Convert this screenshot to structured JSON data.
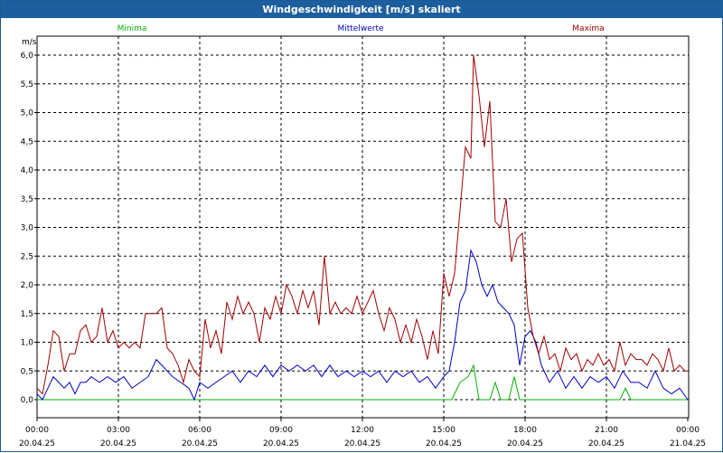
{
  "window": {
    "title": "Windgeschwindigkeit [m/s] skaliert"
  },
  "chart_data": {
    "type": "line",
    "title": "Windgeschwindigkeit [m/s] skaliert",
    "ylabel": "m/s",
    "ylim": [
      0,
      6.0
    ],
    "yticks": [
      "0,0",
      "0,5",
      "1,0",
      "1,5",
      "2,0",
      "2,5",
      "3,0",
      "3,5",
      "4,0",
      "4,5",
      "5,0",
      "5,5",
      "6,0"
    ],
    "xlim_hours": [
      0,
      24
    ],
    "xticks": [
      {
        "time": "00:00",
        "date": "20.04.25"
      },
      {
        "time": "03:00",
        "date": "20.04.25"
      },
      {
        "time": "06:00",
        "date": "20.04.25"
      },
      {
        "time": "09:00",
        "date": "20.04.25"
      },
      {
        "time": "12:00",
        "date": "20.04.25"
      },
      {
        "time": "15:00",
        "date": "20.04.25"
      },
      {
        "time": "18:00",
        "date": "20.04.25"
      },
      {
        "time": "21:00",
        "date": "20.04.25"
      },
      {
        "time": "00:00",
        "date": "21.04.25"
      }
    ],
    "grid": true,
    "legend_position": "top",
    "series": [
      {
        "name": "Minima",
        "color": "#00b000",
        "points": [
          [
            0,
            0
          ],
          [
            15.3,
            0
          ],
          [
            15.6,
            0.3
          ],
          [
            15.9,
            0.4
          ],
          [
            16.1,
            0.6
          ],
          [
            16.3,
            0
          ],
          [
            16.7,
            0
          ],
          [
            16.9,
            0.3
          ],
          [
            17.1,
            0
          ],
          [
            17.4,
            0
          ],
          [
            17.6,
            0.4
          ],
          [
            17.8,
            0
          ],
          [
            21.5,
            0
          ],
          [
            21.7,
            0.2
          ],
          [
            21.9,
            0
          ],
          [
            24,
            0
          ]
        ]
      },
      {
        "name": "Mittelwerte",
        "color": "#0000c0",
        "points": [
          [
            0,
            0.1
          ],
          [
            0.2,
            0.0
          ],
          [
            0.4,
            0.2
          ],
          [
            0.6,
            0.4
          ],
          [
            0.8,
            0.3
          ],
          [
            1.0,
            0.2
          ],
          [
            1.2,
            0.3
          ],
          [
            1.4,
            0.1
          ],
          [
            1.6,
            0.3
          ],
          [
            1.8,
            0.3
          ],
          [
            2.0,
            0.4
          ],
          [
            2.3,
            0.3
          ],
          [
            2.6,
            0.4
          ],
          [
            2.9,
            0.3
          ],
          [
            3.2,
            0.4
          ],
          [
            3.5,
            0.2
          ],
          [
            3.8,
            0.3
          ],
          [
            4.1,
            0.4
          ],
          [
            4.4,
            0.7
          ],
          [
            4.6,
            0.6
          ],
          [
            4.8,
            0.5
          ],
          [
            5.0,
            0.4
          ],
          [
            5.3,
            0.3
          ],
          [
            5.6,
            0.2
          ],
          [
            5.8,
            0.0
          ],
          [
            6.0,
            0.3
          ],
          [
            6.3,
            0.2
          ],
          [
            6.6,
            0.3
          ],
          [
            6.9,
            0.4
          ],
          [
            7.2,
            0.5
          ],
          [
            7.5,
            0.3
          ],
          [
            7.8,
            0.5
          ],
          [
            8.1,
            0.4
          ],
          [
            8.4,
            0.6
          ],
          [
            8.7,
            0.4
          ],
          [
            9.0,
            0.6
          ],
          [
            9.3,
            0.5
          ],
          [
            9.6,
            0.6
          ],
          [
            9.9,
            0.5
          ],
          [
            10.2,
            0.6
          ],
          [
            10.5,
            0.4
          ],
          [
            10.8,
            0.6
          ],
          [
            11.1,
            0.4
          ],
          [
            11.4,
            0.5
          ],
          [
            11.7,
            0.4
          ],
          [
            12.0,
            0.5
          ],
          [
            12.3,
            0.4
          ],
          [
            12.6,
            0.5
          ],
          [
            12.9,
            0.3
          ],
          [
            13.2,
            0.5
          ],
          [
            13.5,
            0.4
          ],
          [
            13.8,
            0.5
          ],
          [
            14.1,
            0.3
          ],
          [
            14.4,
            0.4
          ],
          [
            14.7,
            0.2
          ],
          [
            15.0,
            0.4
          ],
          [
            15.2,
            0.5
          ],
          [
            15.4,
            1.0
          ],
          [
            15.6,
            1.7
          ],
          [
            15.8,
            1.9
          ],
          [
            16.0,
            2.6
          ],
          [
            16.2,
            2.4
          ],
          [
            16.4,
            2.0
          ],
          [
            16.6,
            1.8
          ],
          [
            16.8,
            2.0
          ],
          [
            17.0,
            1.7
          ],
          [
            17.2,
            1.6
          ],
          [
            17.4,
            1.5
          ],
          [
            17.6,
            1.3
          ],
          [
            17.8,
            0.6
          ],
          [
            18.0,
            1.1
          ],
          [
            18.2,
            1.2
          ],
          [
            18.4,
            1.0
          ],
          [
            18.6,
            0.6
          ],
          [
            18.9,
            0.3
          ],
          [
            19.2,
            0.5
          ],
          [
            19.5,
            0.2
          ],
          [
            19.8,
            0.4
          ],
          [
            20.1,
            0.2
          ],
          [
            20.4,
            0.4
          ],
          [
            20.7,
            0.3
          ],
          [
            21.0,
            0.4
          ],
          [
            21.3,
            0.2
          ],
          [
            21.6,
            0.5
          ],
          [
            21.9,
            0.3
          ],
          [
            22.2,
            0.3
          ],
          [
            22.5,
            0.2
          ],
          [
            22.8,
            0.5
          ],
          [
            23.1,
            0.2
          ],
          [
            23.4,
            0.1
          ],
          [
            23.7,
            0.2
          ],
          [
            24.0,
            0.0
          ]
        ]
      },
      {
        "name": "Maxima",
        "color": "#a00000",
        "points": [
          [
            0,
            0.2
          ],
          [
            0.2,
            0.1
          ],
          [
            0.4,
            0.6
          ],
          [
            0.6,
            1.2
          ],
          [
            0.8,
            1.1
          ],
          [
            1.0,
            0.5
          ],
          [
            1.2,
            0.8
          ],
          [
            1.4,
            0.8
          ],
          [
            1.6,
            1.2
          ],
          [
            1.8,
            1.3
          ],
          [
            2.0,
            1.0
          ],
          [
            2.2,
            1.1
          ],
          [
            2.4,
            1.6
          ],
          [
            2.6,
            1.0
          ],
          [
            2.8,
            1.2
          ],
          [
            3.0,
            0.9
          ],
          [
            3.2,
            1.0
          ],
          [
            3.4,
            0.9
          ],
          [
            3.6,
            1.0
          ],
          [
            3.8,
            0.9
          ],
          [
            4.0,
            1.5
          ],
          [
            4.2,
            1.5
          ],
          [
            4.4,
            1.5
          ],
          [
            4.6,
            1.6
          ],
          [
            4.8,
            0.9
          ],
          [
            5.0,
            0.8
          ],
          [
            5.2,
            0.6
          ],
          [
            5.4,
            0.3
          ],
          [
            5.6,
            0.7
          ],
          [
            5.8,
            0.5
          ],
          [
            6.0,
            0.4
          ],
          [
            6.2,
            1.4
          ],
          [
            6.4,
            0.9
          ],
          [
            6.6,
            1.2
          ],
          [
            6.8,
            0.8
          ],
          [
            7.0,
            1.7
          ],
          [
            7.2,
            1.4
          ],
          [
            7.4,
            1.8
          ],
          [
            7.6,
            1.5
          ],
          [
            7.8,
            1.7
          ],
          [
            8.0,
            1.5
          ],
          [
            8.2,
            1.0
          ],
          [
            8.4,
            1.6
          ],
          [
            8.6,
            1.4
          ],
          [
            8.8,
            1.8
          ],
          [
            9.0,
            1.5
          ],
          [
            9.2,
            2.0
          ],
          [
            9.4,
            1.8
          ],
          [
            9.6,
            1.5
          ],
          [
            9.8,
            1.9
          ],
          [
            10.0,
            1.6
          ],
          [
            10.2,
            1.9
          ],
          [
            10.4,
            1.3
          ],
          [
            10.6,
            2.5
          ],
          [
            10.8,
            1.5
          ],
          [
            11.0,
            1.7
          ],
          [
            11.2,
            1.5
          ],
          [
            11.4,
            1.6
          ],
          [
            11.6,
            1.5
          ],
          [
            11.8,
            1.8
          ],
          [
            12.0,
            1.5
          ],
          [
            12.2,
            1.7
          ],
          [
            12.4,
            1.9
          ],
          [
            12.6,
            1.5
          ],
          [
            12.8,
            1.2
          ],
          [
            13.0,
            1.6
          ],
          [
            13.2,
            1.4
          ],
          [
            13.4,
            1.0
          ],
          [
            13.6,
            1.3
          ],
          [
            13.8,
            1.0
          ],
          [
            14.0,
            1.4
          ],
          [
            14.2,
            1.1
          ],
          [
            14.4,
            0.7
          ],
          [
            14.6,
            1.2
          ],
          [
            14.8,
            0.8
          ],
          [
            15.0,
            2.2
          ],
          [
            15.2,
            1.8
          ],
          [
            15.4,
            2.2
          ],
          [
            15.6,
            3.3
          ],
          [
            15.8,
            4.4
          ],
          [
            16.0,
            4.2
          ],
          [
            16.1,
            6.0
          ],
          [
            16.3,
            5.3
          ],
          [
            16.5,
            4.4
          ],
          [
            16.7,
            5.2
          ],
          [
            16.9,
            3.1
          ],
          [
            17.1,
            3.0
          ],
          [
            17.3,
            3.5
          ],
          [
            17.5,
            2.4
          ],
          [
            17.7,
            2.8
          ],
          [
            17.9,
            2.9
          ],
          [
            18.1,
            1.6
          ],
          [
            18.3,
            1.1
          ],
          [
            18.5,
            0.8
          ],
          [
            18.7,
            1.1
          ],
          [
            18.9,
            0.7
          ],
          [
            19.1,
            0.8
          ],
          [
            19.3,
            0.5
          ],
          [
            19.5,
            0.9
          ],
          [
            19.7,
            0.7
          ],
          [
            19.9,
            0.8
          ],
          [
            20.1,
            0.5
          ],
          [
            20.3,
            0.7
          ],
          [
            20.5,
            0.6
          ],
          [
            20.7,
            0.8
          ],
          [
            20.9,
            0.6
          ],
          [
            21.1,
            0.7
          ],
          [
            21.3,
            0.5
          ],
          [
            21.5,
            1.0
          ],
          [
            21.7,
            0.6
          ],
          [
            21.9,
            0.8
          ],
          [
            22.1,
            0.7
          ],
          [
            22.3,
            0.7
          ],
          [
            22.5,
            0.6
          ],
          [
            22.7,
            0.8
          ],
          [
            22.9,
            0.7
          ],
          [
            23.1,
            0.5
          ],
          [
            23.3,
            0.9
          ],
          [
            23.5,
            0.5
          ],
          [
            23.7,
            0.6
          ],
          [
            23.9,
            0.5
          ],
          [
            24.0,
            0.5
          ]
        ]
      }
    ]
  }
}
